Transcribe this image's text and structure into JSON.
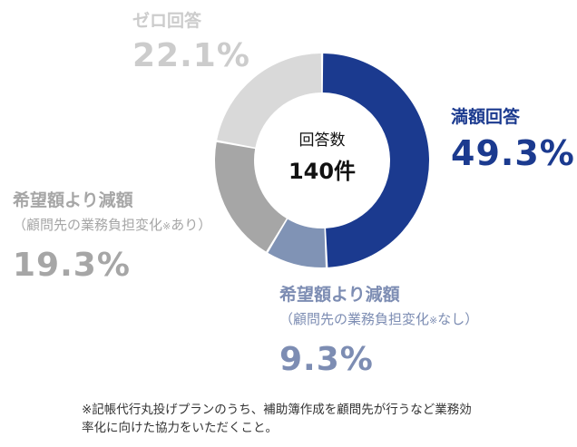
{
  "chart_data": {
    "type": "pie",
    "center_label": "回答数",
    "center_value": "140件",
    "slices": [
      {
        "label": "満額回答",
        "sublabel_pre": "",
        "sublabel_mark": "",
        "sublabel_post": "",
        "value": 49.3,
        "display": "49.3%",
        "color": "#1b3a8f",
        "label_color": "#1b3a8f"
      },
      {
        "label": "希望額より減額",
        "sublabel_pre": "（顧問先の業務負担変化",
        "sublabel_mark": "※",
        "sublabel_post": "なし）",
        "value": 9.3,
        "display": "9.3%",
        "color": "#8093b5",
        "label_color": "#7d8db3"
      },
      {
        "label": "希望額より減額",
        "sublabel_pre": "（顧問先の業務負担変化",
        "sublabel_mark": "※",
        "sublabel_post": "あり）",
        "value": 19.3,
        "display": "19.3%",
        "color": "#a6a6a6",
        "label_color": "#a6a6a6"
      },
      {
        "label": "ゼロ回答",
        "sublabel_pre": "",
        "sublabel_mark": "",
        "sublabel_post": "",
        "value": 22.1,
        "display": "22.1%",
        "color": "#d9d9d9",
        "label_color": "#cccccc"
      }
    ]
  },
  "footnote": {
    "line1": "※記帳代行丸投げプランのうち、補助簿作成を顧問先が行うなど業務効",
    "line2": "率化に向けた協力をいただくこと。"
  }
}
